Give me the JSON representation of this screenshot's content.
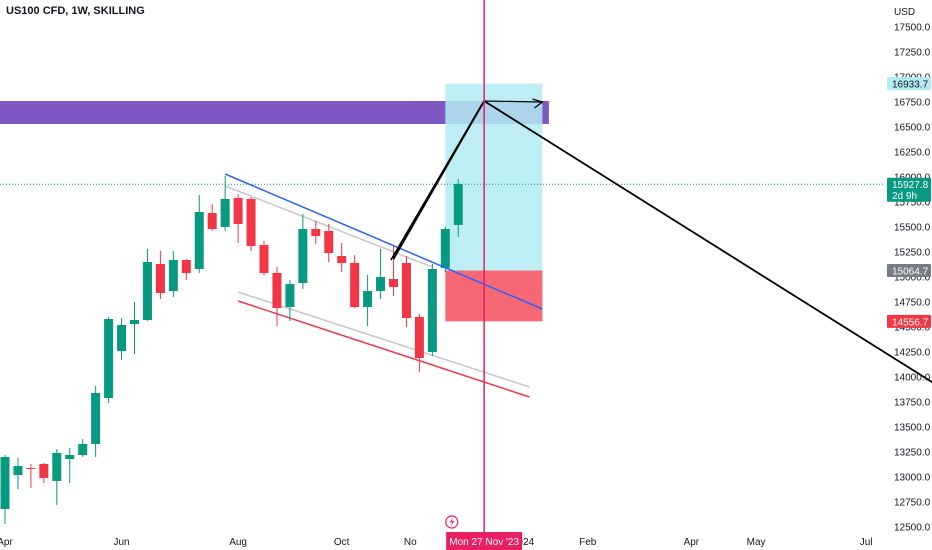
{
  "header": {
    "title": "US100 CFD, 1W, SKILLING"
  },
  "axis": {
    "currency": "USD"
  },
  "colors": {
    "up": "#089981",
    "down": "#f23645",
    "resistance_zone": "#7e57c2",
    "target_zone": "#b2ebf2",
    "stop_zone": "#f23645",
    "crosshair": "#e91e63"
  },
  "chart_data": {
    "type": "candlestick",
    "title": "US100 CFD, 1W, SKILLING",
    "ylabel": "USD",
    "ylim": [
      12450,
      17800
    ],
    "yticks": [
      12500,
      12750,
      13000,
      13250,
      13500,
      13750,
      14000,
      14250,
      14500,
      14750,
      15000,
      15250,
      15500,
      15750,
      16000,
      16250,
      16500,
      16750,
      17000,
      17250,
      17500
    ],
    "ytick_labels": [
      "12500.0",
      "12750.0",
      "13000.0",
      "13250.0",
      "13500.0",
      "13750.0",
      "14000.0",
      "14250.0",
      "14500.0",
      "14750.0",
      "15000.0",
      "15250.0",
      "15500.0",
      "15750.0",
      "16000.0",
      "16250.0",
      "16500.0",
      "16750.0",
      "17000.0",
      "17250.0",
      "17500.0"
    ],
    "xticks": [
      {
        "label": "Apr",
        "week": 0
      },
      {
        "label": "Jun",
        "week": 9
      },
      {
        "label": "Aug",
        "week": 18
      },
      {
        "label": "Oct",
        "week": 26
      },
      {
        "label": "No",
        "week": 31.3
      },
      {
        "label": "2024",
        "week": 40
      },
      {
        "label": "Feb",
        "week": 45
      },
      {
        "label": "May",
        "week": 58
      },
      {
        "label": "Apr",
        "week": 53
      },
      {
        "label": "Jul",
        "week": 66.5
      }
    ],
    "candles": [
      {
        "week": 0,
        "o": 12680,
        "h": 13220,
        "l": 12530,
        "c": 13200
      },
      {
        "week": 1,
        "o": 13020,
        "h": 13190,
        "l": 12880,
        "c": 13110
      },
      {
        "week": 2,
        "o": 13090,
        "h": 13130,
        "l": 12890,
        "c": 13080
      },
      {
        "week": 3,
        "o": 13130,
        "h": 13140,
        "l": 12940,
        "c": 12990
      },
      {
        "week": 4,
        "o": 12960,
        "h": 13280,
        "l": 12720,
        "c": 13240
      },
      {
        "week": 5,
        "o": 13180,
        "h": 13290,
        "l": 12940,
        "c": 13220
      },
      {
        "week": 6,
        "o": 13220,
        "h": 13380,
        "l": 13200,
        "c": 13330
      },
      {
        "week": 7,
        "o": 13330,
        "h": 13910,
        "l": 13200,
        "c": 13840
      },
      {
        "week": 8,
        "o": 13790,
        "h": 14600,
        "l": 13740,
        "c": 14580
      },
      {
        "week": 9,
        "o": 14260,
        "h": 14590,
        "l": 14170,
        "c": 14520
      },
      {
        "week": 10,
        "o": 14530,
        "h": 14750,
        "l": 14230,
        "c": 14570
      },
      {
        "week": 11,
        "o": 14570,
        "h": 15280,
        "l": 14560,
        "c": 15150
      },
      {
        "week": 12,
        "o": 15130,
        "h": 15260,
        "l": 14780,
        "c": 14840
      },
      {
        "week": 13,
        "o": 14860,
        "h": 15260,
        "l": 14800,
        "c": 15170
      },
      {
        "week": 14,
        "o": 15170,
        "h": 15180,
        "l": 14970,
        "c": 15040
      },
      {
        "week": 15,
        "o": 15080,
        "h": 15820,
        "l": 15040,
        "c": 15650
      },
      {
        "week": 16,
        "o": 15640,
        "h": 15730,
        "l": 15460,
        "c": 15480
      },
      {
        "week": 17,
        "o": 15500,
        "h": 16010,
        "l": 15460,
        "c": 15780
      },
      {
        "week": 18,
        "o": 15790,
        "h": 15830,
        "l": 15340,
        "c": 15530
      },
      {
        "week": 19,
        "o": 15780,
        "h": 15800,
        "l": 15260,
        "c": 15310
      },
      {
        "week": 20,
        "o": 15320,
        "h": 15360,
        "l": 15020,
        "c": 15040
      },
      {
        "week": 21,
        "o": 15040,
        "h": 15100,
        "l": 14510,
        "c": 14690
      },
      {
        "week": 22,
        "o": 14700,
        "h": 14970,
        "l": 14560,
        "c": 14930
      },
      {
        "week": 23,
        "o": 14940,
        "h": 15630,
        "l": 14880,
        "c": 15480
      },
      {
        "week": 24,
        "o": 15480,
        "h": 15560,
        "l": 15330,
        "c": 15410
      },
      {
        "week": 25,
        "o": 15460,
        "h": 15530,
        "l": 15150,
        "c": 15240
      },
      {
        "week": 26,
        "o": 15210,
        "h": 15340,
        "l": 15050,
        "c": 15140
      },
      {
        "week": 27,
        "o": 15140,
        "h": 15220,
        "l": 14690,
        "c": 14700
      },
      {
        "week": 28,
        "o": 14700,
        "h": 15020,
        "l": 14510,
        "c": 14860
      },
      {
        "week": 29,
        "o": 14860,
        "h": 15280,
        "l": 14780,
        "c": 15000
      },
      {
        "week": 30,
        "o": 14980,
        "h": 15320,
        "l": 14810,
        "c": 14900
      },
      {
        "week": 31,
        "o": 15140,
        "h": 15210,
        "l": 14500,
        "c": 14590
      },
      {
        "week": 32,
        "o": 14600,
        "h": 14630,
        "l": 14050,
        "c": 14190
      },
      {
        "week": 33,
        "o": 14250,
        "h": 15130,
        "l": 14210,
        "c": 15080
      },
      {
        "week": 34,
        "o": 15090,
        "h": 15500,
        "l": 15050,
        "c": 15480
      },
      {
        "week": 35,
        "o": 15520,
        "h": 15980,
        "l": 15400,
        "c": 15930
      }
    ],
    "price_tags": [
      {
        "label": "16933.7",
        "value": 16933.7,
        "style": "target"
      },
      {
        "label": "15927.8",
        "sub": "2d 9h",
        "value": 15927.8,
        "style": "current"
      },
      {
        "label": "15064.7",
        "value": 15064.7,
        "style": "entry"
      },
      {
        "label": "14556.7",
        "value": 14556.7,
        "style": "stop"
      }
    ],
    "annotations": {
      "resistance_zone": {
        "from_week": -2,
        "to_week": 42,
        "low": 16530,
        "high": 16760
      },
      "target_zone": {
        "from_week": 34,
        "to_week": 41.5,
        "low": 15064.7,
        "high": 16933.7
      },
      "stop_zone": {
        "from_week": 34,
        "to_week": 41.5,
        "low": 14556.7,
        "high": 15064.7
      },
      "channel_upper_blue": {
        "w1": 17,
        "p1": 16030,
        "w2": 41.5,
        "p2": 14680
      },
      "channel_upper_grey": {
        "w1": 17,
        "p1": 15910,
        "w2": 33,
        "p2": 15100
      },
      "channel_lower_grey": {
        "w1": 18,
        "p1": 14850,
        "w2": 40.5,
        "p2": 13900
      },
      "channel_lower_red": {
        "w1": 18,
        "p1": 14760,
        "w2": 40.5,
        "p2": 13800
      },
      "path_up": [
        {
          "w": 30,
          "p": 15180
        },
        {
          "w": 37,
          "p": 16760
        }
      ],
      "path_arrow": [
        {
          "w": 37,
          "p": 16760
        },
        {
          "w": 41.5,
          "p": 16750
        }
      ],
      "path_down": [
        {
          "w": 37,
          "p": 16760
        },
        {
          "w": 84,
          "p": 12940
        }
      ],
      "cursor_week": 37,
      "cursor_label": "Mon 27 Nov '23",
      "current_price_line": 15927.8
    }
  }
}
